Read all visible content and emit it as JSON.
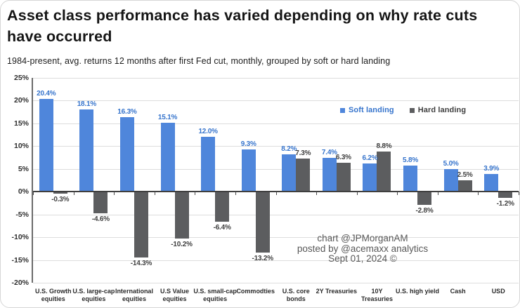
{
  "header": {
    "title": "Asset class performance has varied depending on why rate cuts have occurred",
    "subtitle": "1984-present, avg. returns 12 months after first Fed cut, monthly, grouped by soft or hard landing"
  },
  "legend": {
    "soft_label": "Soft landing",
    "hard_label": "Hard landing"
  },
  "attribution": {
    "line1": "chart @JPMorganAM",
    "line2": "posted by @acemaxx analytics",
    "line3": "Sept 01, 2024 ©"
  },
  "colors": {
    "soft_bar": "#4f86db",
    "soft_text": "#3674cc",
    "hard_bar": "#5c5d5f",
    "hard_text": "#3f3f3f",
    "gridline": "#dddddd",
    "zero_line": "#3f3f3f",
    "axis_text": "#2e2e2e",
    "attribution_text": "#585858"
  },
  "chart_data": {
    "type": "bar",
    "title": "Asset class performance has varied depending on why rate cuts have occurred",
    "subtitle": "1984-present, avg. returns 12 months after first Fed cut, monthly, grouped by soft or hard landing",
    "xlabel": "",
    "ylabel": "",
    "ylim": [
      -20,
      25
    ],
    "ytick_step": 5,
    "ytick_suffix": "%",
    "grid": true,
    "legend_position": "inside-top-right",
    "categories": [
      "U.S. Growth\nequities",
      "U.S. large-cap\nequities",
      "International\nequities",
      "U.S Value\nequities",
      "U.S. small-cap\nequities",
      "Commodties",
      "U.S. core\nbonds",
      "2Y Treasuries",
      "10Y\nTreasuries",
      "U.S. high yield",
      "Cash",
      "USD"
    ],
    "series": [
      {
        "name": "Soft landing",
        "values": [
          20.4,
          18.1,
          16.3,
          15.1,
          12.0,
          9.3,
          8.2,
          7.4,
          6.2,
          5.8,
          5.0,
          3.9
        ]
      },
      {
        "name": "Hard landing",
        "values": [
          -0.3,
          -4.6,
          -14.3,
          -10.2,
          -6.4,
          -13.2,
          7.3,
          6.3,
          8.8,
          -2.8,
          2.5,
          -1.2
        ]
      }
    ]
  }
}
